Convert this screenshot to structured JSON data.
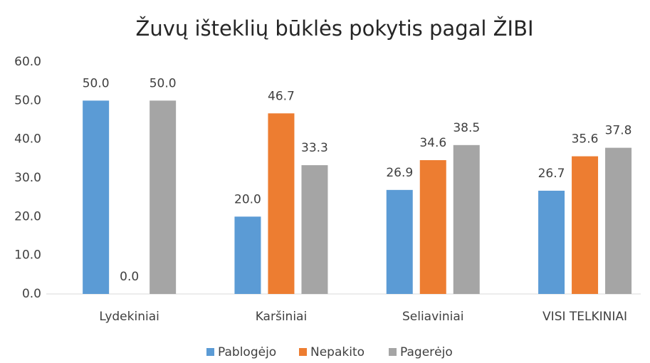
{
  "chart_data": {
    "type": "bar",
    "title": "Žuvų išteklių būklės pokytis pagal ŽIBI",
    "categories": [
      "Lydekiniai",
      "Karšiniai",
      "Seliaviniai",
      "VISI TELKINIAI"
    ],
    "series": [
      {
        "name": "Pablogėjo",
        "color": "#5b9bd5",
        "values": [
          50,
          20,
          26.9,
          26.7
        ],
        "value_labels": [
          "50.0",
          "20.0",
          "26.9",
          "26.7"
        ]
      },
      {
        "name": "Nepakito",
        "color": "#ed7d31",
        "values": [
          0,
          46.7,
          34.6,
          35.6
        ],
        "value_labels": [
          "0.0",
          "46.7",
          "34.6",
          "35.6"
        ]
      },
      {
        "name": "Pagerėjo",
        "color": "#a5a5a5",
        "values": [
          50,
          33.3,
          38.5,
          37.8
        ],
        "value_labels": [
          "50.0",
          "33.3",
          "38.5",
          "37.8"
        ]
      }
    ],
    "ylim": [
      0,
      60
    ],
    "yticks": [
      {
        "value": 0,
        "label": "0.0"
      },
      {
        "value": 10,
        "label": "10.0"
      },
      {
        "value": 20,
        "label": "20.0"
      },
      {
        "value": 30,
        "label": "30.0"
      },
      {
        "value": 40,
        "label": "40.0"
      },
      {
        "value": 50,
        "label": "50.0"
      },
      {
        "value": 60,
        "label": "60.0"
      }
    ],
    "grid": false,
    "legend": "bottom"
  }
}
